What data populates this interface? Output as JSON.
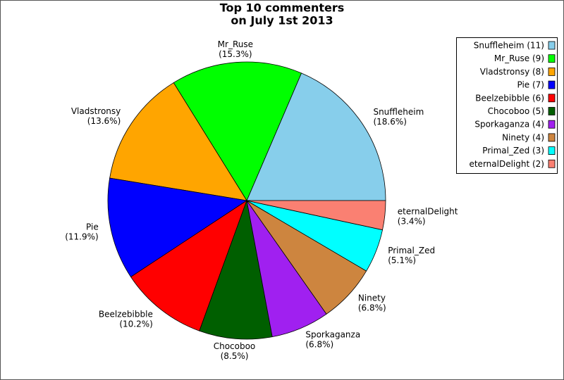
{
  "chart_data": {
    "type": "pie",
    "title": [
      "Top 10 commenters",
      "on July 1st 2013"
    ],
    "categories": [
      "Snuffleheim",
      "Mr_Ruse",
      "Vladstronsy",
      "Pie",
      "Beelzebibble",
      "Chocoboo",
      "Sporkaganza",
      "Ninety",
      "Primal_Zed",
      "eternalDelight"
    ],
    "values": [
      18.6,
      15.3,
      13.6,
      11.9,
      10.2,
      8.5,
      6.8,
      6.8,
      5.1,
      3.4
    ],
    "value_labels": [
      "(18.6%)",
      "(15.3%)",
      "(13.6%)",
      "(11.9%)",
      "(10.2%)",
      "(8.5%)",
      "(6.8%)",
      "(6.8%)",
      "(5.1%)",
      "(3.4%)"
    ],
    "legend_labels": [
      "Snuffleheim (11)",
      "Mr_Ruse (9)",
      "Vladstronsy (8)",
      "Pie (7)",
      "Beelzebibble (6)",
      "Chocoboo (5)",
      "Sporkaganza (4)",
      "Ninety (4)",
      "Primal_Zed (3)",
      "eternalDelight (2)"
    ],
    "colors": [
      "#87ceeb",
      "#00ff00",
      "#ffa500",
      "#0000ff",
      "#ff0000",
      "#005f00",
      "#a020f0",
      "#cd853f",
      "#00ffff",
      "#fa8072"
    ],
    "legend_position": "upper right"
  }
}
